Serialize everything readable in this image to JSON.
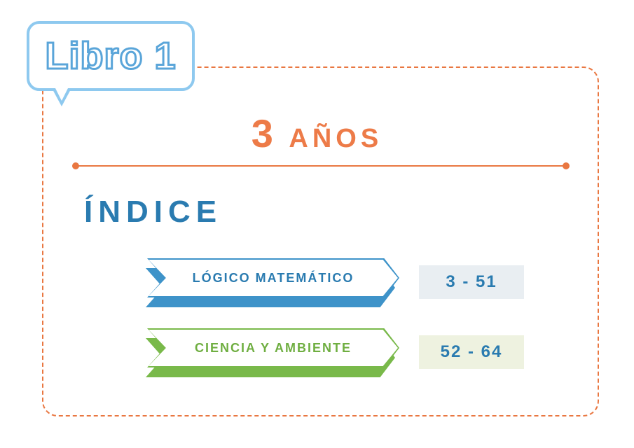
{
  "colors": {
    "frame_border": "#e97741",
    "bubble_border": "#8ec9ef",
    "bubble_text_stroke": "#5aa5d9",
    "age_text": "#ed7b48",
    "rule": "#e97741",
    "index_heading": "#2a7bb0"
  },
  "book_title": "Libro 1",
  "age": {
    "number": "3",
    "word": "AÑOS"
  },
  "index_heading": "ÍNDICE",
  "sections": [
    {
      "label": "LÓGICO  MATEMÁTICO",
      "label_color": "#2a7bb0",
      "arrow_border_color": "#3e93c9",
      "arrow_shadow_color": "#3e93c9",
      "pages_text": "3 - 51",
      "pages_bg": "#e9eef2",
      "pages_text_color": "#2a7bb0"
    },
    {
      "label": "CIENCIA  Y  AMBIENTE",
      "label_color": "#6fae41",
      "arrow_border_color": "#79b94a",
      "arrow_shadow_color": "#79b94a",
      "pages_text": "52 - 64",
      "pages_bg": "#eef2e0",
      "pages_text_color": "#2a7bb0"
    }
  ]
}
